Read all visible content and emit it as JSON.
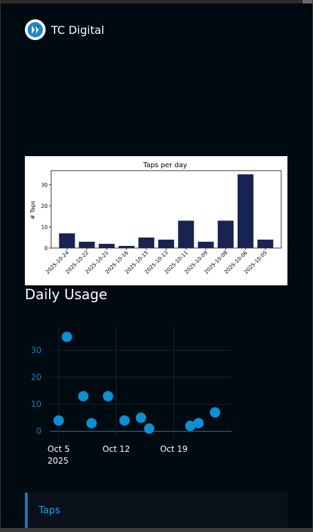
{
  "header": {
    "brand": "TC Digital",
    "logo_icon": "tc-digital-logo-icon"
  },
  "bar_chart": {
    "title": "Taps per day",
    "ylabel": "# Taps"
  },
  "section": {
    "title": "Daily Usage"
  },
  "scatter": {
    "x_ticks": [
      "Oct 5",
      "Oct 12",
      "Oct 19"
    ],
    "x_year": "2025",
    "y_ticks": [
      "0",
      "10",
      "20",
      "30"
    ]
  },
  "card": {
    "label": "Taps"
  },
  "colors": {
    "background": "#000a11",
    "bar": "#172350",
    "accent": "#0e83c8",
    "point": "#0d8fd3",
    "card_bg": "#0a111b"
  },
  "chart_data": [
    {
      "type": "bar",
      "title": "Taps per day",
      "xlabel": "",
      "ylabel": "# Taps",
      "categories": [
        "2025-10-24",
        "2025-10-22",
        "2025-10-21",
        "2025-10-16",
        "2025-10-15",
        "2025-10-13",
        "2025-10-11",
        "2025-10-09",
        "2025-10-08",
        "2025-10-06",
        "2025-10-05"
      ],
      "values": [
        7,
        3,
        2,
        1,
        5,
        4,
        13,
        3,
        13,
        35,
        4
      ],
      "ylim": [
        0,
        36.75
      ],
      "y_ticks": [
        0,
        10,
        20,
        30
      ],
      "grid": false
    },
    {
      "type": "scatter",
      "title": "",
      "xlabel": "",
      "ylabel": "",
      "x": [
        "2025-10-05",
        "2025-10-06",
        "2025-10-08",
        "2025-10-09",
        "2025-10-11",
        "2025-10-13",
        "2025-10-15",
        "2025-10-16",
        "2025-10-21",
        "2025-10-22",
        "2025-10-24"
      ],
      "y": [
        4,
        35,
        13,
        3,
        13,
        4,
        5,
        1,
        2,
        3,
        7
      ],
      "x_range": [
        "2025-10-04",
        "2025-10-26"
      ],
      "ylim": [
        -2,
        39
      ],
      "y_ticks": [
        0,
        10,
        20,
        30
      ],
      "grid": true
    }
  ]
}
